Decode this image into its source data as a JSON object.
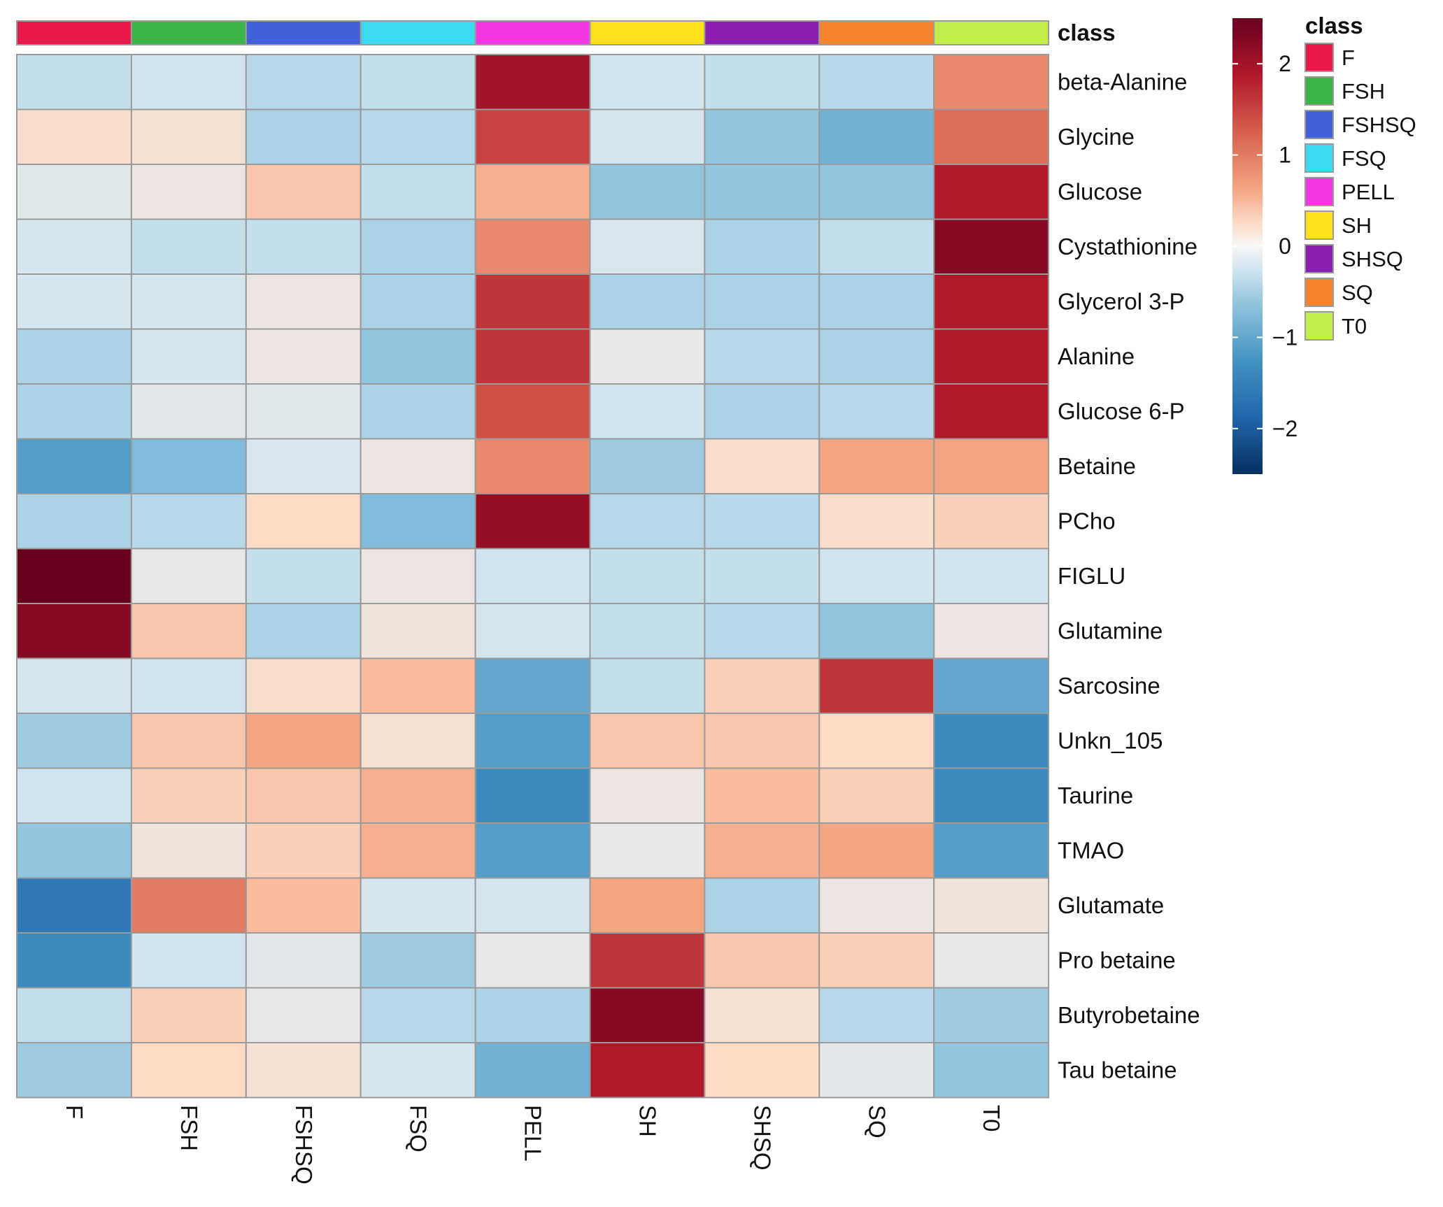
{
  "chart_data": {
    "type": "heatmap",
    "title": "",
    "columns": [
      "F",
      "FSH",
      "FSHSQ",
      "FSQ",
      "PELL",
      "SH",
      "SHSQ",
      "SQ",
      "T0"
    ],
    "rows": [
      "beta-Alanine",
      "Glycine",
      "Glucose",
      "Cystathionine",
      "Glycerol 3-P",
      "Alanine",
      "Glucose 6-P",
      "Betaine",
      "PCho",
      "FIGLU",
      "Glutamine",
      "Sarcosine",
      "Unkn_105",
      "Taurine",
      "TMAO",
      "Glutamate",
      "Pro betaine",
      "Butyrobetaine",
      "Tau betaine"
    ],
    "values": [
      [
        -0.6,
        -0.5,
        -0.7,
        -0.6,
        2.1,
        -0.5,
        -0.6,
        -0.7,
        1.2
      ],
      [
        0.4,
        0.3,
        -0.8,
        -0.7,
        1.7,
        -0.4,
        -1.0,
        -1.2,
        1.4
      ],
      [
        -0.2,
        0.1,
        0.7,
        -0.6,
        0.9,
        -1.0,
        -1.0,
        -1.0,
        2.0
      ],
      [
        -0.4,
        -0.6,
        -0.6,
        -0.8,
        1.2,
        -0.3,
        -0.8,
        -0.6,
        2.3
      ],
      [
        -0.4,
        -0.4,
        0.1,
        -0.8,
        1.8,
        -0.8,
        -0.8,
        -0.8,
        2.0
      ],
      [
        -0.8,
        -0.4,
        0.1,
        -1.0,
        1.8,
        0.0,
        -0.7,
        -0.8,
        2.0
      ],
      [
        -0.8,
        -0.1,
        -0.2,
        -0.8,
        1.6,
        -0.5,
        -0.8,
        -0.7,
        2.0
      ],
      [
        -1.4,
        -1.1,
        -0.3,
        0.1,
        1.2,
        -0.9,
        0.4,
        1.0,
        1.0
      ],
      [
        -0.8,
        -0.7,
        0.5,
        -1.1,
        2.2,
        -0.7,
        -0.7,
        0.4,
        0.6
      ],
      [
        2.5,
        0.0,
        -0.6,
        0.1,
        -0.5,
        -0.6,
        -0.6,
        -0.5,
        -0.5
      ],
      [
        2.3,
        0.7,
        -0.8,
        0.2,
        -0.4,
        -0.6,
        -0.7,
        -1.0,
        0.1
      ],
      [
        -0.4,
        -0.5,
        0.4,
        0.8,
        -1.3,
        -0.6,
        0.6,
        1.8,
        -1.3
      ],
      [
        -0.9,
        0.7,
        1.0,
        0.3,
        -1.4,
        0.7,
        0.7,
        0.5,
        -1.6
      ],
      [
        -0.5,
        0.6,
        0.7,
        0.9,
        -1.6,
        0.1,
        0.8,
        0.6,
        -1.6
      ],
      [
        -1.0,
        0.2,
        0.6,
        0.9,
        -1.4,
        0.0,
        0.9,
        1.0,
        -1.4
      ],
      [
        -1.8,
        1.3,
        0.8,
        -0.4,
        -0.4,
        1.0,
        -0.8,
        0.1,
        0.2
      ],
      [
        -1.6,
        -0.5,
        -0.1,
        -0.9,
        0.0,
        1.8,
        0.7,
        0.6,
        0.0
      ],
      [
        -0.6,
        0.6,
        0.0,
        -0.7,
        -0.8,
        2.3,
        0.3,
        -0.7,
        -0.9
      ],
      [
        -0.9,
        0.5,
        0.3,
        -0.4,
        -1.2,
        2.0,
        0.5,
        -0.1,
        -1.0
      ]
    ],
    "annotation": {
      "title": "class",
      "colors": [
        "#e8194a",
        "#3bb54a",
        "#4260d8",
        "#3cd9f2",
        "#f236e6",
        "#ffe01a",
        "#8c1fb3",
        "#f5842f",
        "#c2ee4a"
      ]
    },
    "colorbar": {
      "range": [
        -2.5,
        2.5
      ],
      "ticks": [
        2,
        1,
        0,
        -1,
        -2
      ],
      "tick_labels": [
        "2",
        "1",
        "0",
        "−1",
        "−2"
      ]
    },
    "legend": {
      "title": "class",
      "entries": [
        "F",
        "FSH",
        "FSHSQ",
        "FSQ",
        "PELL",
        "SH",
        "SHSQ",
        "SQ",
        "T0"
      ]
    }
  }
}
